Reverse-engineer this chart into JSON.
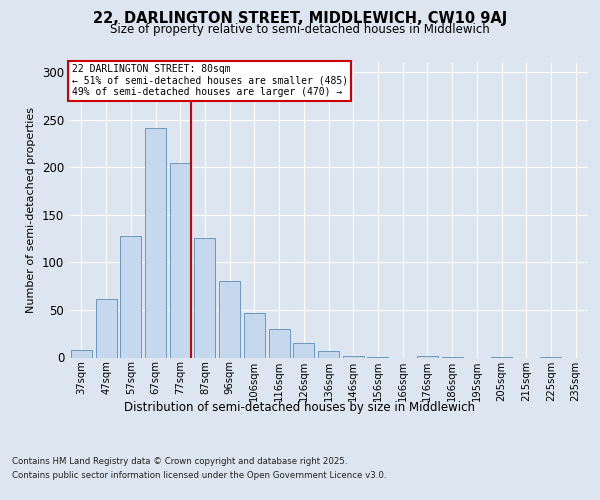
{
  "title": "22, DARLINGTON STREET, MIDDLEWICH, CW10 9AJ",
  "subtitle": "Size of property relative to semi-detached houses in Middlewich",
  "xlabel": "Distribution of semi-detached houses by size in Middlewich",
  "ylabel": "Number of semi-detached properties",
  "categories": [
    "37sqm",
    "47sqm",
    "57sqm",
    "67sqm",
    "77sqm",
    "87sqm",
    "96sqm",
    "106sqm",
    "116sqm",
    "126sqm",
    "136sqm",
    "146sqm",
    "156sqm",
    "166sqm",
    "176sqm",
    "186sqm",
    "195sqm",
    "205sqm",
    "215sqm",
    "225sqm",
    "235sqm"
  ],
  "values": [
    8,
    62,
    128,
    241,
    204,
    126,
    80,
    47,
    30,
    15,
    7,
    2,
    1,
    0,
    2,
    1,
    0,
    1,
    0,
    1,
    0
  ],
  "bar_color": "#c5d8ed",
  "bar_edge_color": "#5b8db8",
  "property_bin_index": 4,
  "redline_label": "22 DARLINGTON STREET: 80sqm",
  "smaller_pct": 51,
  "smaller_count": 485,
  "larger_pct": 49,
  "larger_count": 470,
  "annotation_box_color": "#ffffff",
  "annotation_box_edge": "#cc0000",
  "redline_color": "#cc0000",
  "ylim": [
    0,
    310
  ],
  "yticks": [
    0,
    50,
    100,
    150,
    200,
    250,
    300
  ],
  "background_color": "#dde5f0",
  "plot_background": "#dde5f0",
  "footer_line1": "Contains HM Land Registry data © Crown copyright and database right 2025.",
  "footer_line2": "Contains public sector information licensed under the Open Government Licence v3.0."
}
